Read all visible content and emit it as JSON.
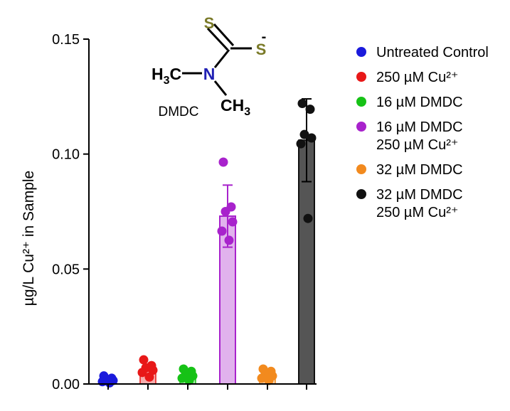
{
  "chart_data": {
    "type": "bar",
    "title": "",
    "xlabel": "",
    "ylabel": "µg/L Cu²⁺ in Sample",
    "ylim": [
      0,
      0.15
    ],
    "yticks": [
      "0.00",
      "0.05",
      "0.10",
      "0.15"
    ],
    "grid": false,
    "legend_position": "right",
    "categories": [
      "Untreated Control",
      "250 µM Cu²⁺",
      "16 µM DMDC",
      "16 µM DMDC 250 µM Cu²⁺",
      "32 µM DMDC",
      "32 µM DMDC 250 µM Cu²⁺"
    ],
    "series": [
      {
        "name": "Untreated Control",
        "color": "#1a1adc",
        "mean": 0.002,
        "sd": 0.0012,
        "points": [
          0.0035,
          0.0025,
          0.002,
          0.0015,
          0.001,
          0.0005
        ]
      },
      {
        "name": "250 µM Cu²⁺",
        "color": "#e81818",
        "mean": 0.0065,
        "sd": 0.002,
        "points": [
          0.0105,
          0.008,
          0.007,
          0.006,
          0.005,
          0.003
        ]
      },
      {
        "name": "16 µM DMDC",
        "color": "#16c216",
        "mean": 0.004,
        "sd": 0.0015,
        "points": [
          0.0065,
          0.0055,
          0.0045,
          0.0035,
          0.0025,
          0.0015
        ]
      },
      {
        "name": "16 µM DMDC 250 µM Cu²⁺",
        "color": "#a822cc",
        "mean": 0.073,
        "sd": 0.0135,
        "points": [
          0.0965,
          0.077,
          0.075,
          0.0705,
          0.0665,
          0.0625
        ]
      },
      {
        "name": "32 µM DMDC",
        "color": "#f28a1e",
        "mean": 0.004,
        "sd": 0.0015,
        "points": [
          0.0065,
          0.0055,
          0.0045,
          0.0035,
          0.0025,
          0.0015
        ]
      },
      {
        "name": "32 µM DMDC 250 µM Cu²⁺",
        "color": "#111111",
        "mean": 0.106,
        "sd": 0.018,
        "points": [
          0.122,
          0.1195,
          0.1085,
          0.107,
          0.1045,
          0.072
        ]
      }
    ]
  },
  "legend": {
    "items": [
      {
        "lines": [
          "Untreated Control"
        ],
        "color": "#1a1adc"
      },
      {
        "lines": [
          "250 µM Cu²⁺"
        ],
        "color": "#e81818"
      },
      {
        "lines": [
          "16 µM DMDC"
        ],
        "color": "#16c216"
      },
      {
        "lines": [
          "16 µM DMDC",
          "250 µM Cu²⁺"
        ],
        "color": "#a822cc"
      },
      {
        "lines": [
          "32 µM DMDC"
        ],
        "color": "#f28a1e"
      },
      {
        "lines": [
          "32 µM DMDC",
          "250 µM Cu²⁺"
        ],
        "color": "#111111"
      }
    ]
  },
  "structure": {
    "sulfur_top": "S",
    "sulfur_right": "S",
    "charge": "-",
    "nitrogen": "N",
    "methyl_left_h": "H",
    "methyl_left_sub": "3",
    "methyl_left_c": "C",
    "methyl_right_c": "CH",
    "methyl_right_sub": "3",
    "label": "DMDC",
    "sulfur_color": "#7a7a28",
    "nitrogen_color": "#2020b4"
  }
}
